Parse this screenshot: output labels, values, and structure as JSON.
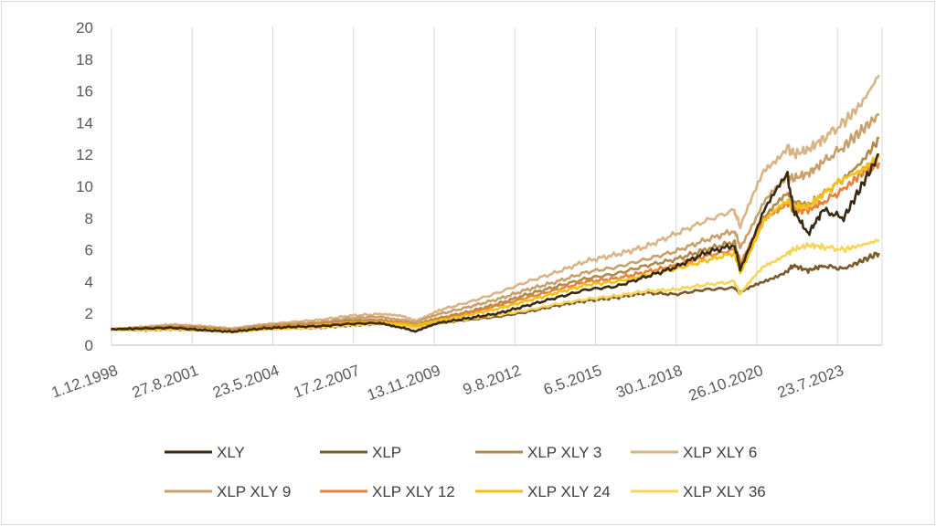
{
  "chart_data": {
    "type": "line",
    "title": "",
    "xlabel": "",
    "ylabel": "",
    "ylim": [
      0,
      20
    ],
    "yticks": [
      "0",
      "2",
      "4",
      "6",
      "8",
      "10",
      "12",
      "14",
      "16",
      "18",
      "20"
    ],
    "xticks": [
      "1.12.1998",
      "27.8.2001",
      "23.5.2004",
      "17.2.2007",
      "13.11.2009",
      "9.8.2012",
      "6.5.2015",
      "30.1.2018",
      "26.10.2020",
      "23.7.2023"
    ],
    "x_range": [
      "1.12.1998",
      "2024"
    ],
    "grid": "vertical",
    "legend_position": "bottom",
    "x": [
      1998.9,
      2000,
      2001,
      2002,
      2003,
      2004,
      2005,
      2006,
      2007,
      2008,
      2008.8,
      2009.2,
      2010,
      2011,
      2012,
      2013,
      2014,
      2015,
      2016,
      2017,
      2018,
      2019,
      2020.0,
      2020.2,
      2021,
      2021.8,
      2022,
      2022.5,
      2023,
      2023.7,
      2024.3,
      2024.9
    ],
    "series": [
      {
        "name": "XLY",
        "color": "#3a2a10",
        "values": [
          1.0,
          1.05,
          1.1,
          0.95,
          0.85,
          1.05,
          1.15,
          1.2,
          1.35,
          1.4,
          1.1,
          0.85,
          1.4,
          1.7,
          2.0,
          2.5,
          3.0,
          3.5,
          3.7,
          4.3,
          4.9,
          5.8,
          6.3,
          4.8,
          8.5,
          10.7,
          8.5,
          7.0,
          8.5,
          8.0,
          10.0,
          12.0
        ]
      },
      {
        "name": "XLP",
        "color": "#7a5a2a",
        "values": [
          1.0,
          0.95,
          1.0,
          0.95,
          0.85,
          1.0,
          1.05,
          1.1,
          1.25,
          1.35,
          1.3,
          1.15,
          1.4,
          1.6,
          1.8,
          2.1,
          2.5,
          2.8,
          3.0,
          3.3,
          3.2,
          3.5,
          3.6,
          3.3,
          4.0,
          4.7,
          5.0,
          4.7,
          5.0,
          4.8,
          5.3,
          5.8
        ]
      },
      {
        "name": "XLP XLY 3",
        "color": "#b08a48",
        "values": [
          1.0,
          1.1,
          1.15,
          1.1,
          0.95,
          1.15,
          1.25,
          1.35,
          1.55,
          1.6,
          1.45,
          1.25,
          1.7,
          2.1,
          2.6,
          3.2,
          3.7,
          4.2,
          4.5,
          5.0,
          5.4,
          6.0,
          6.5,
          5.2,
          8.0,
          9.5,
          9.0,
          8.8,
          9.5,
          10.5,
          11.5,
          13.0
        ]
      },
      {
        "name": "XLP XLY 6",
        "color": "#d8b486",
        "values": [
          1.0,
          1.15,
          1.3,
          1.2,
          1.05,
          1.3,
          1.45,
          1.6,
          1.85,
          1.95,
          1.8,
          1.55,
          2.2,
          2.7,
          3.3,
          4.0,
          4.6,
          5.3,
          5.7,
          6.2,
          7.0,
          7.8,
          8.5,
          7.4,
          11.0,
          12.5,
          12.0,
          12.3,
          13.0,
          14.0,
          15.2,
          17.0
        ]
      },
      {
        "name": "XLP XLY 9",
        "color": "#c9a06a",
        "values": [
          1.0,
          1.12,
          1.25,
          1.15,
          1.0,
          1.25,
          1.35,
          1.45,
          1.7,
          1.8,
          1.6,
          1.4,
          1.95,
          2.4,
          2.9,
          3.5,
          4.0,
          4.6,
          4.9,
          5.4,
          5.9,
          6.6,
          7.2,
          6.2,
          9.0,
          10.5,
          10.5,
          10.8,
          11.5,
          12.5,
          13.5,
          14.5
        ]
      },
      {
        "name": "XLP XLY 12",
        "color": "#e8823a",
        "values": [
          1.0,
          1.05,
          1.1,
          1.0,
          0.9,
          1.1,
          1.2,
          1.3,
          1.45,
          1.5,
          1.4,
          1.25,
          1.6,
          2.0,
          2.5,
          3.0,
          3.5,
          4.0,
          4.2,
          4.6,
          5.0,
          5.6,
          6.0,
          5.0,
          8.0,
          9.0,
          8.5,
          8.5,
          9.0,
          9.8,
          10.8,
          11.5
        ]
      },
      {
        "name": "XLP XLY 24",
        "color": "#f5bf14",
        "values": [
          1.0,
          1.02,
          1.05,
          0.98,
          0.88,
          1.05,
          1.15,
          1.25,
          1.4,
          1.45,
          1.35,
          1.2,
          1.55,
          1.9,
          2.3,
          2.8,
          3.3,
          3.8,
          4.0,
          4.4,
          4.8,
          5.3,
          5.8,
          4.6,
          7.8,
          9.0,
          8.8,
          8.7,
          9.5,
          10.5,
          11.0,
          11.8
        ]
      },
      {
        "name": "XLP XLY 36",
        "color": "#f7d55a",
        "values": [
          1.0,
          0.95,
          1.0,
          0.95,
          0.82,
          0.98,
          1.05,
          1.12,
          1.28,
          1.35,
          1.25,
          1.1,
          1.4,
          1.65,
          1.9,
          2.2,
          2.6,
          2.9,
          3.1,
          3.4,
          3.5,
          3.8,
          4.0,
          3.2,
          5.0,
          5.8,
          6.0,
          6.3,
          6.2,
          6.0,
          6.3,
          6.6
        ]
      }
    ]
  }
}
